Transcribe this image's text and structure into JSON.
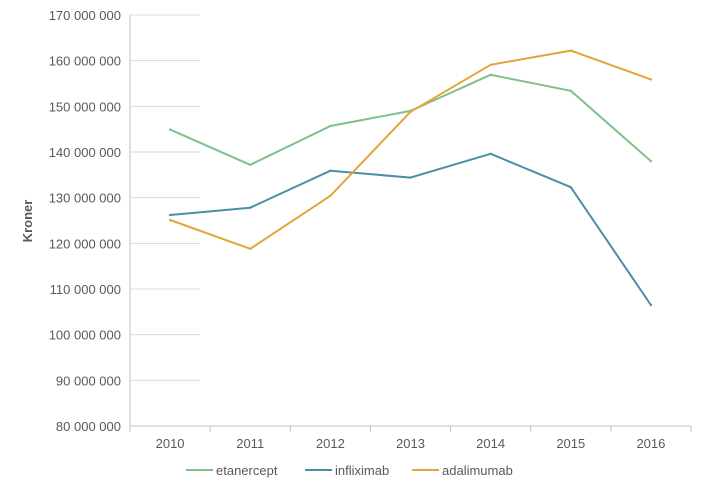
{
  "chart_data": {
    "type": "line",
    "title": "",
    "xlabel": "",
    "ylabel": "Kroner",
    "categories": [
      "2010",
      "2011",
      "2012",
      "2013",
      "2014",
      "2015",
      "2016"
    ],
    "y_ticks": [
      "80 000 000",
      "90 000 000",
      "100 000 000",
      "110 000 000",
      "120 000 000",
      "130 000 000",
      "140 000 000",
      "150 000 000",
      "160 000 000",
      "170 000 000"
    ],
    "ylim": [
      80000000,
      170000000
    ],
    "grid": false,
    "legend_position": "bottom",
    "series": [
      {
        "name": "etanercept",
        "color": "#7fc08a",
        "values": [
          144900000,
          137200000,
          145700000,
          149000000,
          156900000,
          153400000,
          138000000
        ]
      },
      {
        "name": "infliximab",
        "color": "#4b8fa6",
        "values": [
          126200000,
          127800000,
          135900000,
          134400000,
          139600000,
          132300000,
          106500000
        ]
      },
      {
        "name": "adalimumab",
        "color": "#e5a33a",
        "values": [
          125100000,
          118800000,
          130400000,
          148800000,
          159100000,
          162200000,
          155900000
        ]
      }
    ]
  }
}
